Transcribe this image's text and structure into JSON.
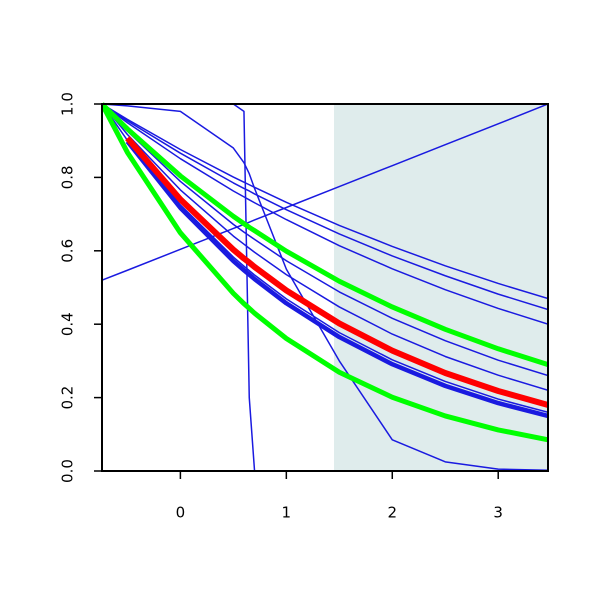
{
  "chart_data": {
    "type": "line",
    "x": [
      -0.74,
      -0.5,
      0,
      0.5,
      0.6,
      0.65,
      0.7,
      1,
      1.5,
      2,
      2.5,
      3,
      3.47
    ],
    "xlim": [
      -0.74,
      3.47
    ],
    "ylim": [
      0,
      1
    ],
    "xticks": [
      0,
      1,
      2,
      3
    ],
    "yticks": [
      {
        "value": 0,
        "label": "0.0"
      },
      {
        "value": 0.2,
        "label": "0.2"
      },
      {
        "value": 0.4,
        "label": "0.4"
      },
      {
        "value": 0.6,
        "label": "0.6"
      },
      {
        "value": 0.8,
        "label": "0.8"
      },
      {
        "value": 1,
        "label": "1.0"
      }
    ],
    "shaded_xrange": [
      1.45,
      3.47
    ],
    "shade_color": "#dfecec",
    "series": [
      {
        "color": "#1a1ae0",
        "width": 1.5,
        "values": [
          0.52,
          0.547,
          0.604,
          0.661,
          0.672,
          0.678,
          0.684,
          0.718,
          0.775,
          0.832,
          0.889,
          0.946,
          1.0
        ]
      },
      {
        "color": "#1a1ae0",
        "width": 1.5,
        "values": [
          1,
          1,
          1,
          1,
          0.98,
          0.2,
          0.0,
          0,
          0,
          0,
          0,
          0,
          0
        ]
      },
      {
        "color": "#1a1ae0",
        "width": 1.5,
        "values": [
          1,
          0.995,
          0.98,
          0.88,
          0.84,
          0.81,
          0.77,
          0.55,
          0.3,
          0.085,
          0.025,
          0.005,
          0.002
        ]
      },
      {
        "color": "#1a1ae0",
        "width": 1.5,
        "values": [
          1,
          0.958,
          0.876,
          0.801,
          0.787,
          0.78,
          0.773,
          0.732,
          0.669,
          0.612,
          0.559,
          0.511,
          0.47
        ]
      },
      {
        "color": "#1a1ae0",
        "width": 1.5,
        "values": [
          1,
          0.954,
          0.866,
          0.785,
          0.77,
          0.763,
          0.755,
          0.712,
          0.646,
          0.586,
          0.532,
          0.482,
          0.44
        ]
      },
      {
        "color": "#1a1ae0",
        "width": 1.5,
        "values": [
          1,
          0.949,
          0.851,
          0.763,
          0.747,
          0.739,
          0.731,
          0.685,
          0.614,
          0.551,
          0.494,
          0.443,
          0.4
        ]
      },
      {
        "color": "#1a1ae0",
        "width": 1.5,
        "values": [
          1,
          0.926,
          0.789,
          0.672,
          0.651,
          0.641,
          0.631,
          0.573,
          0.488,
          0.416,
          0.355,
          0.302,
          0.26
        ]
      },
      {
        "color": "#1a1ae0",
        "width": 1.5,
        "values": [
          1,
          0.917,
          0.766,
          0.64,
          0.618,
          0.607,
          0.596,
          0.535,
          0.447,
          0.373,
          0.312,
          0.261,
          0.22
        ]
      },
      {
        "color": "#1a1ae0",
        "width": 1.5,
        "values": [
          1,
          0.901,
          0.725,
          0.583,
          0.558,
          0.546,
          0.534,
          0.469,
          0.377,
          0.303,
          0.244,
          0.196,
          0.16
        ]
      },
      {
        "color": "#1a1ae0",
        "width": 4.5,
        "values": [
          null,
          0.898,
          0.717,
          0.572,
          0.547,
          0.535,
          0.523,
          0.457,
          0.365,
          0.291,
          0.232,
          0.185,
          0.15
        ]
      },
      {
        "color": "#00ff00",
        "width": 5,
        "values": [
          1,
          0.932,
          0.804,
          0.694,
          0.674,
          0.664,
          0.655,
          0.599,
          0.517,
          0.447,
          0.386,
          0.333,
          0.29
        ]
      },
      {
        "color": "#00ff00",
        "width": 5,
        "values": [
          1,
          0.868,
          0.649,
          0.484,
          0.456,
          0.443,
          0.43,
          0.361,
          0.269,
          0.201,
          0.15,
          0.112,
          0.085
        ]
      },
      {
        "color": "#ff0000",
        "width": 6,
        "values": [
          null,
          0.907,
          0.74,
          0.603,
          0.579,
          0.568,
          0.556,
          0.492,
          0.402,
          0.328,
          0.267,
          0.218,
          0.18
        ]
      }
    ]
  }
}
